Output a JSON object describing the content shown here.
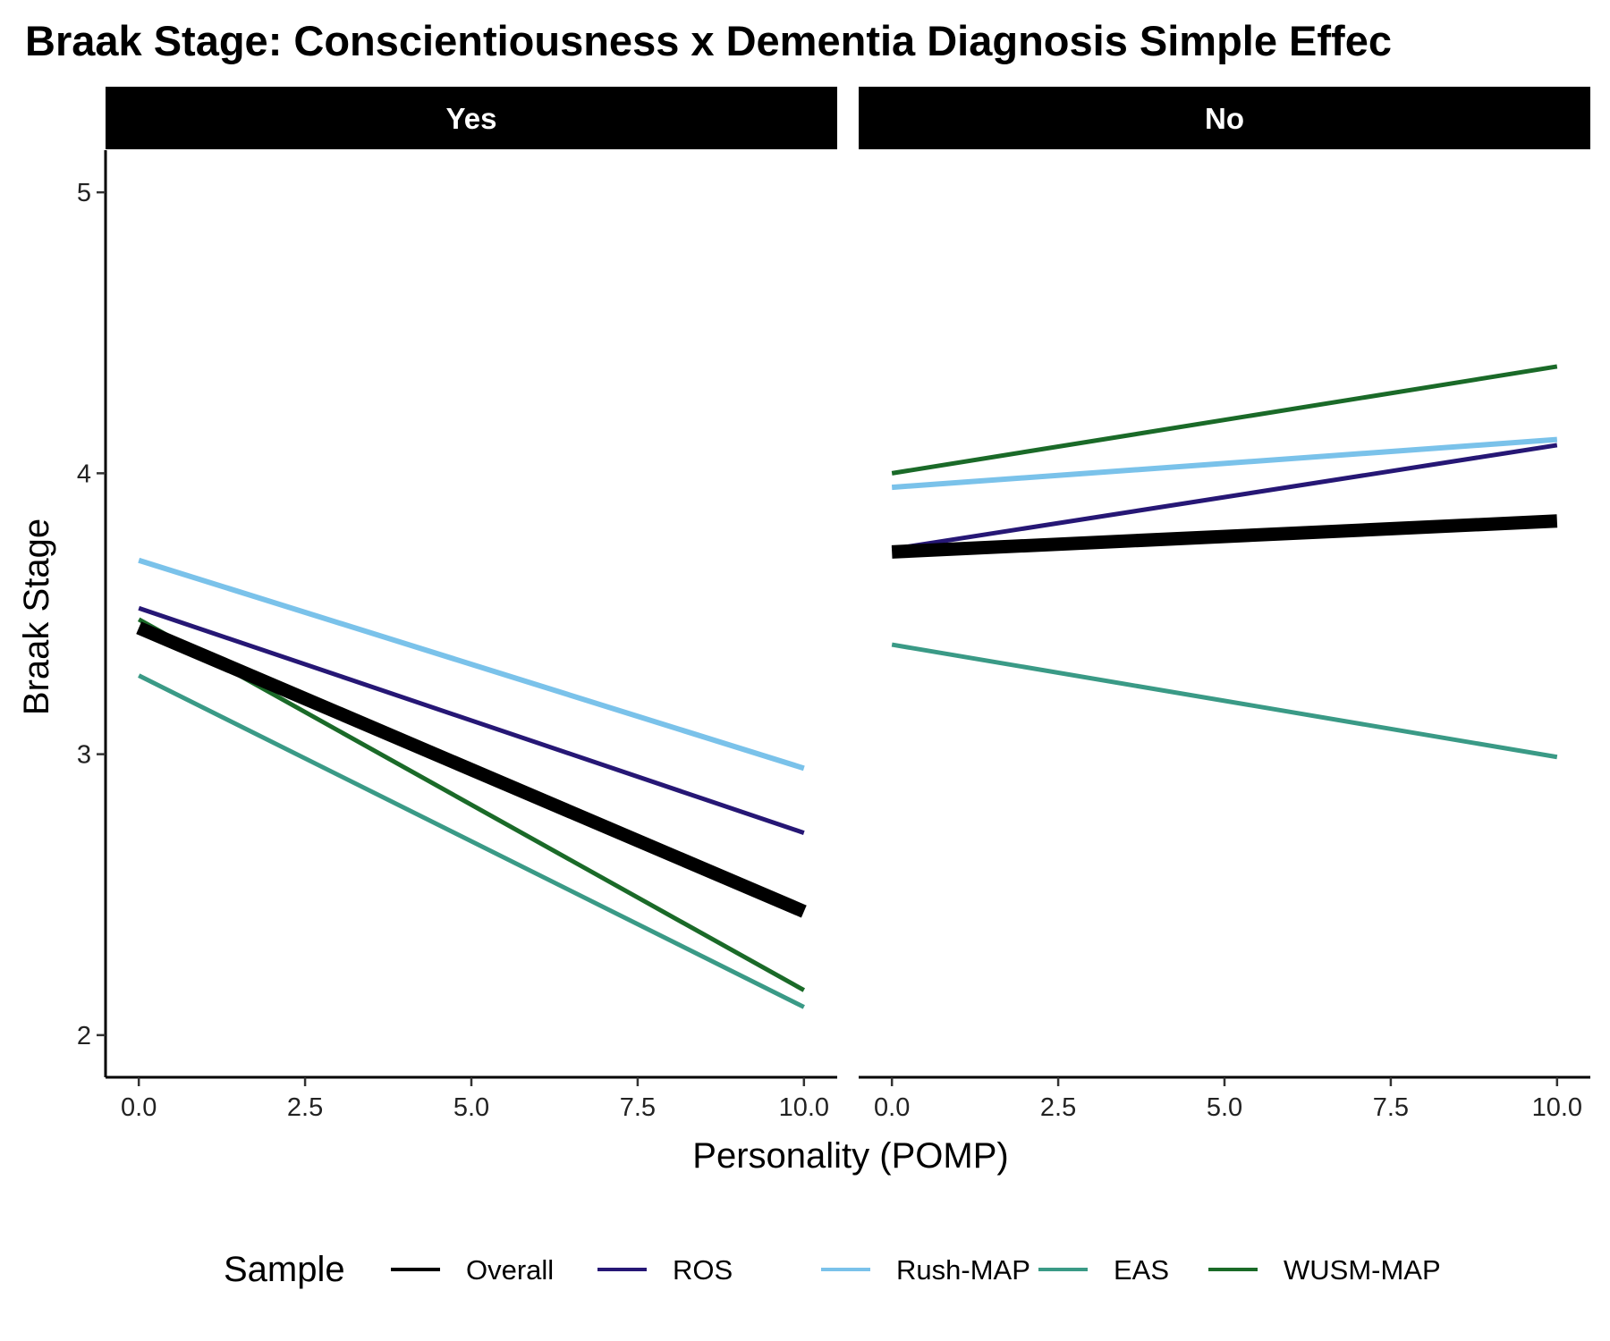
{
  "chart_data": {
    "type": "line",
    "title": "Braak Stage: Conscientiousness x Dementia Diagnosis Simple Effec",
    "xlabel": "Personality (POMP)",
    "ylabel": "Braak Stage",
    "xlim": [
      -0.5,
      10.5
    ],
    "ylim": [
      1.85,
      5.15
    ],
    "x_ticks": [
      0,
      2.5,
      5,
      7.5,
      10
    ],
    "x_tick_labels": [
      "0.0",
      "2.5",
      "5.0",
      "7.5",
      "10.0"
    ],
    "y_ticks": [
      2,
      3,
      4,
      5
    ],
    "y_tick_labels": [
      "2",
      "3",
      "4",
      "5"
    ],
    "legend": {
      "title": "Sample",
      "position": "bottom",
      "entries": [
        "Overall",
        "ROS",
        "Rush-MAP",
        "EAS",
        "WUSM-MAP"
      ]
    },
    "facets": [
      {
        "label": "Yes",
        "series": [
          {
            "name": "Rush-MAP",
            "color": "#7ac2ea",
            "x": [
              0,
              10
            ],
            "y": [
              3.69,
              2.95
            ]
          },
          {
            "name": "ROS",
            "color": "#261775",
            "x": [
              0,
              10
            ],
            "y": [
              3.52,
              2.72
            ]
          },
          {
            "name": "EAS",
            "color": "#3a9a86",
            "x": [
              0,
              10
            ],
            "y": [
              3.28,
              2.1
            ]
          },
          {
            "name": "WUSM-MAP",
            "color": "#1a6a28",
            "x": [
              0,
              10
            ],
            "y": [
              3.48,
              2.16
            ]
          },
          {
            "name": "Overall",
            "color": "#000000",
            "x": [
              0,
              10
            ],
            "y": [
              3.45,
              2.44
            ]
          }
        ]
      },
      {
        "label": "No",
        "series": [
          {
            "name": "Rush-MAP",
            "color": "#7ac2ea",
            "x": [
              0,
              10
            ],
            "y": [
              3.95,
              4.12
            ]
          },
          {
            "name": "ROS",
            "color": "#261775",
            "x": [
              0,
              10
            ],
            "y": [
              3.73,
              4.1
            ]
          },
          {
            "name": "EAS",
            "color": "#3a9a86",
            "x": [
              0,
              10
            ],
            "y": [
              3.39,
              2.99
            ]
          },
          {
            "name": "WUSM-MAP",
            "color": "#1a6a28",
            "x": [
              0,
              10
            ],
            "y": [
              4.0,
              4.38
            ]
          },
          {
            "name": "Overall",
            "color": "#000000",
            "x": [
              0,
              10
            ],
            "y": [
              3.72,
              3.83
            ]
          }
        ]
      }
    ]
  }
}
